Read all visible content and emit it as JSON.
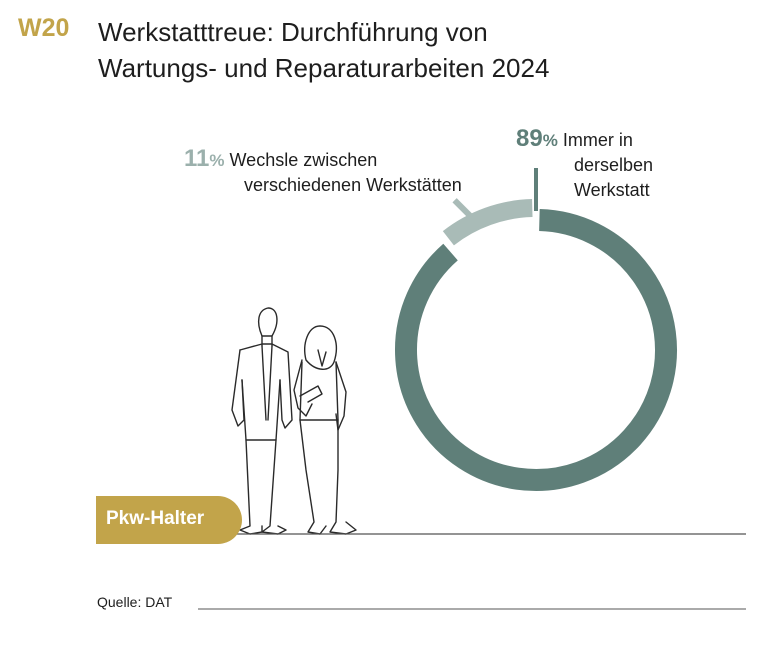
{
  "header": {
    "code": "W20",
    "title_line1": "Werkstatttreue: Durchführung von",
    "title_line2": "Wartungs- und Reparaturarbeiten 2024"
  },
  "chart_data": {
    "type": "pie",
    "variant": "donut",
    "title": "Werkstatttreue: Durchführung von Wartungs- und Reparaturarbeiten 2024",
    "segments": [
      {
        "value": 89,
        "percent_label": "89",
        "unit": "%",
        "label_lines": [
          "Immer in",
          "derselben",
          "Werkstatt"
        ],
        "color": "#5f7f79"
      },
      {
        "value": 11,
        "percent_label": "11",
        "unit": "%",
        "label_lines": [
          "Wechsle zwischen",
          "verschiedenen Werkstätten"
        ],
        "color": "#a9bbb7"
      }
    ]
  },
  "group_tag": "Pkw-Halter",
  "source": "Quelle: DAT",
  "colors": {
    "accent": "#c2a44a",
    "primary": "#5f7f79",
    "secondary": "#a9bbb7",
    "rule": "#555555"
  }
}
